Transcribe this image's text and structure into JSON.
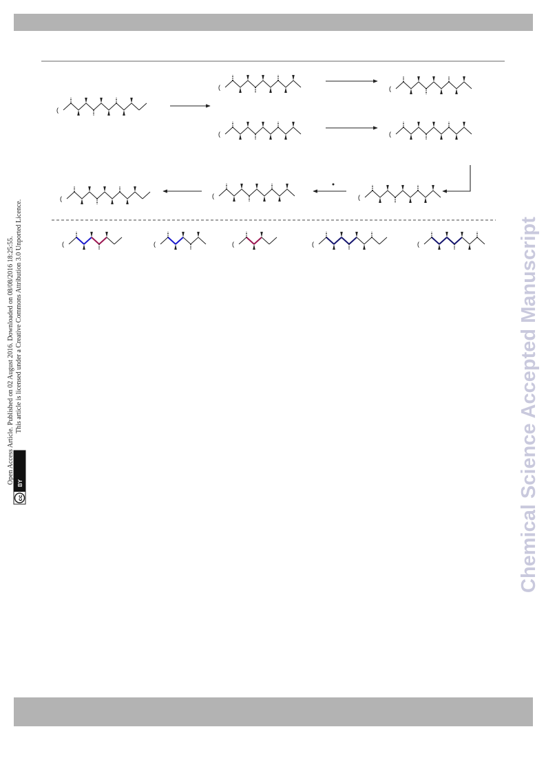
{
  "sidebar": {
    "line1": "Open Access Article. Published on 02 August 2016. Downloaded on 08/08/2016 18:25:55.",
    "line2": "This article is licensed under a Creative Commons Attribution 3.0 Unported Licence."
  },
  "license_badge": {
    "cc": "cc",
    "by": "BY"
  },
  "watermark": "Chemical Science Accepted Manuscript"
}
